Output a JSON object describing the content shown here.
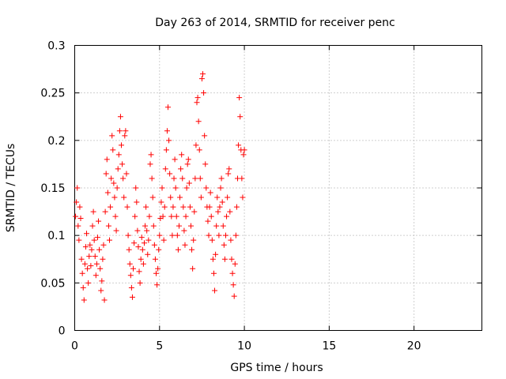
{
  "chart_data": {
    "type": "scatter",
    "title": "Day 263 of 2014, SRMTID for receiver penc",
    "xlabel": "GPS time / hours",
    "ylabel": "SRMTID / TECUs",
    "xlim": [
      0,
      24
    ],
    "ylim": [
      0,
      0.3
    ],
    "xticks": [
      0,
      5,
      10,
      15,
      20
    ],
    "xtick_labels": [
      "0",
      "5",
      "10",
      "15",
      "20"
    ],
    "yticks": [
      0,
      0.05,
      0.1,
      0.15,
      0.2,
      0.25,
      0.3
    ],
    "ytick_labels": [
      "0",
      "0.05",
      "0.1",
      "0.15",
      "0.2",
      "0.25",
      "0.3"
    ],
    "grid": true,
    "marker": "+",
    "color": "#ff0000",
    "series": [
      {
        "name": "SRMTID",
        "points": [
          [
            0.05,
            0.12
          ],
          [
            0.1,
            0.135
          ],
          [
            0.15,
            0.15
          ],
          [
            0.2,
            0.11
          ],
          [
            0.25,
            0.095
          ],
          [
            0.3,
            0.13
          ],
          [
            0.35,
            0.118
          ],
          [
            0.4,
            0.075
          ],
          [
            0.45,
            0.06
          ],
          [
            0.5,
            0.045
          ],
          [
            0.55,
            0.032
          ],
          [
            0.6,
            0.07
          ],
          [
            0.65,
            0.088
          ],
          [
            0.7,
            0.102
          ],
          [
            0.75,
            0.065
          ],
          [
            0.8,
            0.05
          ],
          [
            0.85,
            0.078
          ],
          [
            0.9,
            0.09
          ],
          [
            0.95,
            0.068
          ],
          [
            1.0,
            0.085
          ],
          [
            1.05,
            0.11
          ],
          [
            1.1,
            0.125
          ],
          [
            1.15,
            0.095
          ],
          [
            1.2,
            0.078
          ],
          [
            1.25,
            0.058
          ],
          [
            1.3,
            0.07
          ],
          [
            1.35,
            0.098
          ],
          [
            1.4,
            0.115
          ],
          [
            1.45,
            0.085
          ],
          [
            1.5,
            0.065
          ],
          [
            1.55,
            0.042
          ],
          [
            1.6,
            0.052
          ],
          [
            1.65,
            0.075
          ],
          [
            1.7,
            0.09
          ],
          [
            1.75,
            0.032
          ],
          [
            1.8,
            0.125
          ],
          [
            1.85,
            0.165
          ],
          [
            1.9,
            0.18
          ],
          [
            1.95,
            0.145
          ],
          [
            2.0,
            0.11
          ],
          [
            2.05,
            0.095
          ],
          [
            2.1,
            0.13
          ],
          [
            2.15,
            0.16
          ],
          [
            2.2,
            0.205
          ],
          [
            2.25,
            0.19
          ],
          [
            2.3,
            0.155
          ],
          [
            2.35,
            0.14
          ],
          [
            2.4,
            0.12
          ],
          [
            2.45,
            0.105
          ],
          [
            2.5,
            0.15
          ],
          [
            2.55,
            0.17
          ],
          [
            2.6,
            0.185
          ],
          [
            2.65,
            0.21
          ],
          [
            2.7,
            0.225
          ],
          [
            2.75,
            0.195
          ],
          [
            2.8,
            0.175
          ],
          [
            2.85,
            0.16
          ],
          [
            2.9,
            0.14
          ],
          [
            2.95,
            0.205
          ],
          [
            3.0,
            0.21
          ],
          [
            3.05,
            0.165
          ],
          [
            3.1,
            0.13
          ],
          [
            3.15,
            0.1
          ],
          [
            3.2,
            0.085
          ],
          [
            3.25,
            0.07
          ],
          [
            3.3,
            0.058
          ],
          [
            3.35,
            0.045
          ],
          [
            3.4,
            0.035
          ],
          [
            3.45,
            0.065
          ],
          [
            3.5,
            0.092
          ],
          [
            3.55,
            0.12
          ],
          [
            3.6,
            0.15
          ],
          [
            3.65,
            0.135
          ],
          [
            3.7,
            0.105
          ],
          [
            3.75,
            0.088
          ],
          [
            3.8,
            0.062
          ],
          [
            3.85,
            0.05
          ],
          [
            3.9,
            0.075
          ],
          [
            3.95,
            0.098
          ],
          [
            4.0,
            0.085
          ],
          [
            4.05,
            0.07
          ],
          [
            4.1,
            0.092
          ],
          [
            4.15,
            0.11
          ],
          [
            4.2,
            0.13
          ],
          [
            4.25,
            0.105
          ],
          [
            4.3,
            0.08
          ],
          [
            4.35,
            0.095
          ],
          [
            4.4,
            0.12
          ],
          [
            4.45,
            0.175
          ],
          [
            4.5,
            0.185
          ],
          [
            4.55,
            0.16
          ],
          [
            4.6,
            0.14
          ],
          [
            4.65,
            0.11
          ],
          [
            4.7,
            0.09
          ],
          [
            4.75,
            0.075
          ],
          [
            4.8,
            0.06
          ],
          [
            4.85,
            0.048
          ],
          [
            4.9,
            0.065
          ],
          [
            4.95,
            0.085
          ],
          [
            5.0,
            0.1
          ],
          [
            5.05,
            0.118
          ],
          [
            5.1,
            0.135
          ],
          [
            5.15,
            0.15
          ],
          [
            5.2,
            0.12
          ],
          [
            5.25,
            0.095
          ],
          [
            5.3,
            0.13
          ],
          [
            5.35,
            0.17
          ],
          [
            5.4,
            0.19
          ],
          [
            5.45,
            0.21
          ],
          [
            5.5,
            0.235
          ],
          [
            5.55,
            0.2
          ],
          [
            5.6,
            0.165
          ],
          [
            5.65,
            0.14
          ],
          [
            5.7,
            0.12
          ],
          [
            5.75,
            0.1
          ],
          [
            5.8,
            0.13
          ],
          [
            5.85,
            0.16
          ],
          [
            5.9,
            0.18
          ],
          [
            5.95,
            0.15
          ],
          [
            6.0,
            0.12
          ],
          [
            6.05,
            0.1
          ],
          [
            6.1,
            0.085
          ],
          [
            6.15,
            0.11
          ],
          [
            6.2,
            0.14
          ],
          [
            6.25,
            0.17
          ],
          [
            6.3,
            0.185
          ],
          [
            6.35,
            0.16
          ],
          [
            6.4,
            0.13
          ],
          [
            6.45,
            0.105
          ],
          [
            6.5,
            0.09
          ],
          [
            6.55,
            0.12
          ],
          [
            6.6,
            0.15
          ],
          [
            6.65,
            0.175
          ],
          [
            6.7,
            0.18
          ],
          [
            6.75,
            0.155
          ],
          [
            6.8,
            0.13
          ],
          [
            6.85,
            0.11
          ],
          [
            6.9,
            0.085
          ],
          [
            6.95,
            0.065
          ],
          [
            7.0,
            0.095
          ],
          [
            7.05,
            0.125
          ],
          [
            7.1,
            0.16
          ],
          [
            7.15,
            0.195
          ],
          [
            7.2,
            0.24
          ],
          [
            7.25,
            0.245
          ],
          [
            7.3,
            0.22
          ],
          [
            7.35,
            0.19
          ],
          [
            7.4,
            0.16
          ],
          [
            7.45,
            0.14
          ],
          [
            7.5,
            0.265
          ],
          [
            7.55,
            0.27
          ],
          [
            7.6,
            0.25
          ],
          [
            7.65,
            0.205
          ],
          [
            7.7,
            0.175
          ],
          [
            7.75,
            0.15
          ],
          [
            7.8,
            0.13
          ],
          [
            7.85,
            0.115
          ],
          [
            7.9,
            0.1
          ],
          [
            7.95,
            0.13
          ],
          [
            8.0,
            0.145
          ],
          [
            8.05,
            0.12
          ],
          [
            8.1,
            0.095
          ],
          [
            8.15,
            0.075
          ],
          [
            8.2,
            0.06
          ],
          [
            8.25,
            0.042
          ],
          [
            8.3,
            0.08
          ],
          [
            8.35,
            0.11
          ],
          [
            8.4,
            0.14
          ],
          [
            8.45,
            0.125
          ],
          [
            8.5,
            0.1
          ],
          [
            8.55,
            0.13
          ],
          [
            8.6,
            0.15
          ],
          [
            8.65,
            0.16
          ],
          [
            8.7,
            0.135
          ],
          [
            8.75,
            0.11
          ],
          [
            8.8,
            0.09
          ],
          [
            8.85,
            0.075
          ],
          [
            8.9,
            0.1
          ],
          [
            8.95,
            0.12
          ],
          [
            9.0,
            0.14
          ],
          [
            9.05,
            0.165
          ],
          [
            9.1,
            0.17
          ],
          [
            9.15,
            0.125
          ],
          [
            9.2,
            0.095
          ],
          [
            9.25,
            0.075
          ],
          [
            9.3,
            0.06
          ],
          [
            9.35,
            0.048
          ],
          [
            9.4,
            0.036
          ],
          [
            9.45,
            0.07
          ],
          [
            9.5,
            0.1
          ],
          [
            9.55,
            0.13
          ],
          [
            9.6,
            0.16
          ],
          [
            9.65,
            0.195
          ],
          [
            9.7,
            0.245
          ],
          [
            9.75,
            0.225
          ],
          [
            9.8,
            0.19
          ],
          [
            9.85,
            0.16
          ],
          [
            9.9,
            0.14
          ],
          [
            9.95,
            0.185
          ],
          [
            10.0,
            0.19
          ]
        ]
      }
    ]
  }
}
